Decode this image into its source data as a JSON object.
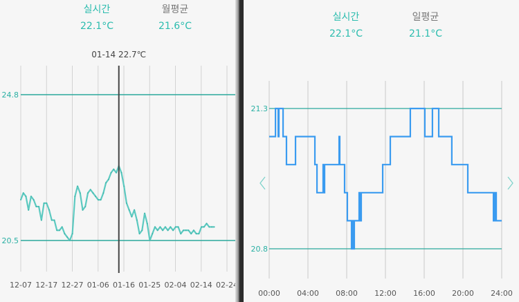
{
  "left": {
    "stats": [
      {
        "label": "실시간",
        "value": "22.1°C",
        "label_color": "#2bbcae"
      },
      {
        "label": "월평균",
        "value": "21.6°C",
        "label_color": "#777777"
      }
    ],
    "cursor_label": "01-14 22.7℃"
  },
  "right": {
    "stats": [
      {
        "label": "실시간",
        "value": "22.1°C",
        "label_color": "#2bbcae"
      },
      {
        "label": "일평균",
        "value": "21.1°C",
        "label_color": "#777777"
      }
    ],
    "prev_icon": "chevron-left-icon",
    "next_icon": "chevron-right-icon"
  },
  "colors": {
    "accent": "#2bbcae",
    "line_monthly": "#5cc9c0",
    "line_daily": "#3a9bf0",
    "ref_line": "#2aa89c"
  },
  "chart_data": [
    {
      "type": "line",
      "xlabel": "",
      "ylabel": "",
      "x_ticks": [
        "12-07",
        "12-17",
        "12-27",
        "01-06",
        "01-16",
        "01-25",
        "02-04",
        "02-14",
        "02-24"
      ],
      "reference_lines": [
        {
          "label": "24.8",
          "value": 24.8
        },
        {
          "label": "20.5",
          "value": 20.5
        }
      ],
      "ylim": [
        19.6,
        25.7
      ],
      "grid": "vertical",
      "cursor": {
        "x": "01-14",
        "y": 22.7
      },
      "x": [
        "12-07",
        "12-08",
        "12-09",
        "12-10",
        "12-11",
        "12-12",
        "12-13",
        "12-14",
        "12-15",
        "12-16",
        "12-17",
        "12-18",
        "12-19",
        "12-20",
        "12-21",
        "12-22",
        "12-23",
        "12-24",
        "12-25",
        "12-26",
        "12-27",
        "12-28",
        "12-29",
        "12-30",
        "12-31",
        "01-01",
        "01-02",
        "01-03",
        "01-04",
        "01-05",
        "01-06",
        "01-07",
        "01-08",
        "01-09",
        "01-10",
        "01-11",
        "01-12",
        "01-13",
        "01-14",
        "01-15",
        "01-16",
        "01-17",
        "01-18",
        "01-19",
        "01-20",
        "01-21",
        "01-22",
        "01-23",
        "01-24",
        "01-25",
        "01-26",
        "01-27",
        "01-28",
        "01-29",
        "01-30",
        "01-31",
        "02-01",
        "02-02",
        "02-03",
        "02-04",
        "02-05",
        "02-06",
        "02-07",
        "02-08",
        "02-09",
        "02-10",
        "02-11",
        "02-12",
        "02-13",
        "02-14",
        "02-15",
        "02-16",
        "02-17",
        "02-18",
        "02-19",
        "02-20"
      ],
      "values": [
        21.7,
        21.9,
        21.8,
        21.4,
        21.8,
        21.7,
        21.5,
        21.5,
        21.1,
        21.6,
        21.6,
        21.4,
        21.1,
        21.1,
        20.8,
        20.8,
        20.9,
        20.7,
        20.6,
        20.5,
        20.7,
        21.8,
        22.1,
        21.9,
        21.4,
        21.5,
        21.9,
        22.0,
        21.9,
        21.8,
        21.7,
        21.7,
        21.9,
        22.2,
        22.3,
        22.5,
        22.6,
        22.5,
        22.7,
        22.5,
        22.1,
        21.6,
        21.4,
        21.2,
        21.4,
        21.1,
        20.7,
        20.8,
        21.3,
        21.0,
        20.5,
        20.7,
        20.9,
        20.8,
        20.9,
        20.8,
        20.9,
        20.8,
        20.9,
        20.8,
        20.9,
        20.9,
        20.7,
        20.8,
        20.8,
        20.8,
        20.7,
        20.8,
        20.7,
        20.7,
        20.9,
        20.9,
        21.0,
        20.9,
        20.9,
        20.9
      ]
    },
    {
      "type": "line",
      "step": true,
      "xlabel": "",
      "ylabel": "",
      "x_ticks": [
        "00:00",
        "04:00",
        "08:00",
        "12:00",
        "16:00",
        "20:00",
        "24:00"
      ],
      "reference_lines": [
        {
          "label": "21.3",
          "value": 21.3
        },
        {
          "label": "20.8",
          "value": 20.8
        }
      ],
      "ylim": [
        20.6,
        21.4
      ],
      "grid": "vertical",
      "x": [
        "00:00",
        "00:39",
        "00:56",
        "01:00",
        "01:26",
        "01:47",
        "02:43",
        "04:43",
        "04:56",
        "05:34",
        "05:38",
        "05:43",
        "07:13",
        "07:17",
        "07:47",
        "08:04",
        "08:30",
        "08:34",
        "08:43",
        "08:47",
        "09:17",
        "09:26",
        "09:30",
        "11:43",
        "12:30",
        "14:34",
        "16:04",
        "16:51",
        "17:30",
        "18:51",
        "20:30",
        "23:09",
        "23:17",
        "23:26",
        "24:00"
      ],
      "values": [
        21.2,
        21.3,
        21.2,
        21.3,
        21.2,
        21.1,
        21.2,
        21.1,
        21.0,
        21.1,
        21.0,
        21.1,
        21.2,
        21.1,
        21.0,
        20.9,
        20.8,
        20.9,
        20.8,
        20.9,
        21.0,
        20.9,
        21.0,
        21.1,
        21.2,
        21.3,
        21.2,
        21.3,
        21.2,
        21.1,
        21.0,
        20.9,
        21.0,
        20.9,
        20.9
      ]
    }
  ]
}
